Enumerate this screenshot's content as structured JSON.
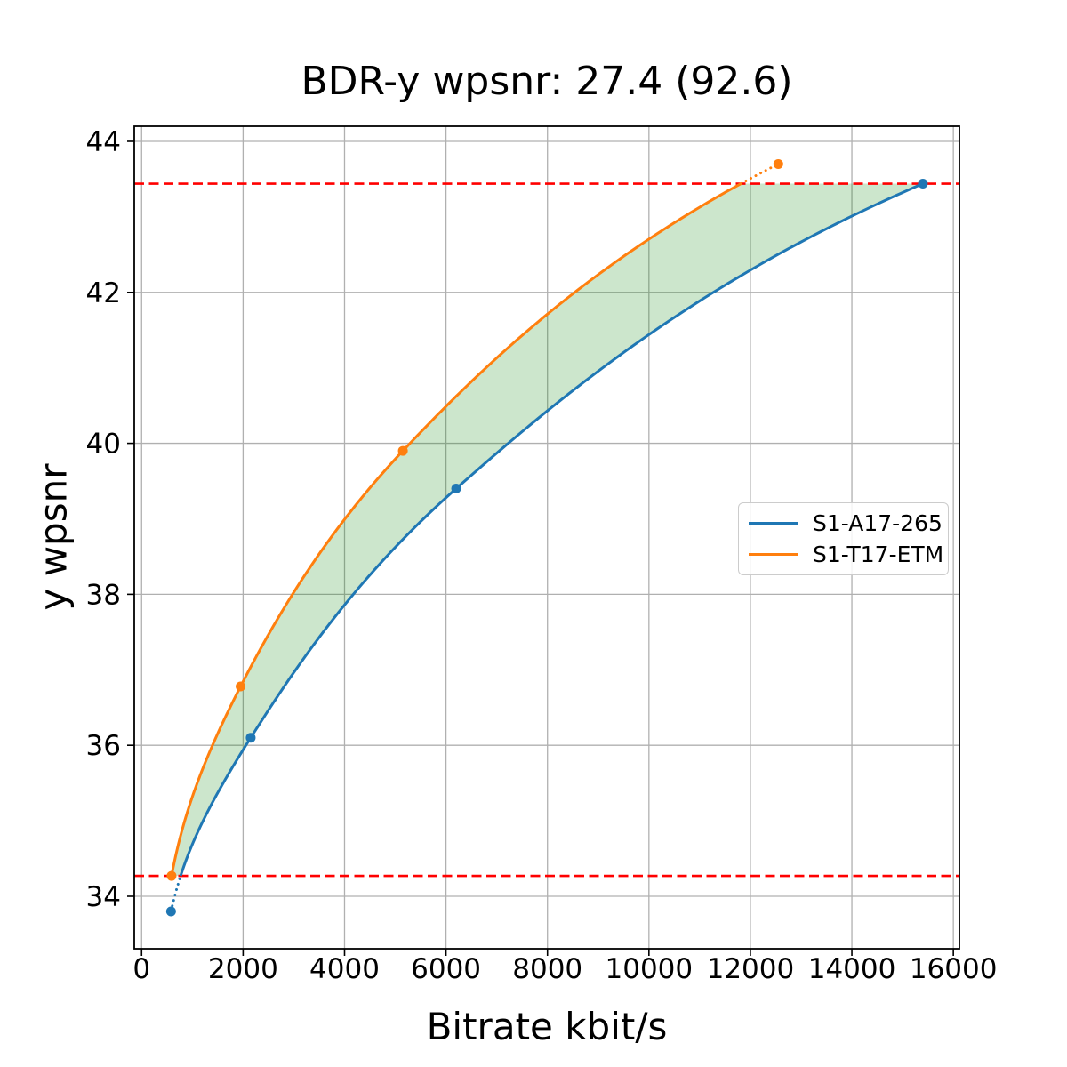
{
  "chart_data": {
    "type": "line",
    "title": "BDR-y wpsnr: 27.4 (92.6)",
    "xlabel": "Bitrate kbit/s",
    "ylabel": "y wpsnr",
    "xlim": [
      -145,
      16120
    ],
    "ylim": [
      33.305,
      44.2
    ],
    "x_ticks": [
      0,
      2000,
      4000,
      6000,
      8000,
      10000,
      12000,
      14000,
      16000
    ],
    "y_ticks": [
      34,
      36,
      38,
      40,
      42,
      44
    ],
    "grid": true,
    "grid_color": "#b0b0b0",
    "legend_position": "center right",
    "interpolation": "pchip-log-x",
    "series": [
      {
        "name": "S1-A17-265",
        "color": "#1f77b4",
        "x": [
          580,
          2150,
          6200,
          15400
        ],
        "y": [
          33.8,
          36.1,
          39.4,
          43.44
        ]
      },
      {
        "name": "S1-T17-ETM",
        "color": "#ff7f0e",
        "x": [
          590,
          1950,
          5150,
          12550
        ],
        "y": [
          34.27,
          36.78,
          39.9,
          43.7
        ]
      }
    ],
    "overlap_region": {
      "y_low": 34.27,
      "y_high": 43.44,
      "boundary_line_color": "#ff0000",
      "boundary_line_style": "dashed",
      "fill_color": "#008000",
      "fill_opacity": 0.2,
      "extrapolation_style": "dotted"
    }
  }
}
